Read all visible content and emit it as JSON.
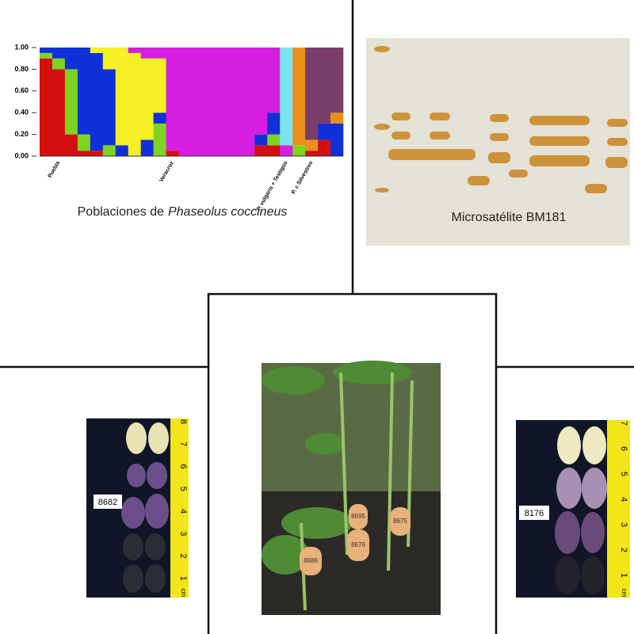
{
  "chart_data": {
    "type": "stacked_bar",
    "categories": [
      null,
      "Puebla",
      null,
      null,
      null,
      null,
      null,
      null,
      null,
      null,
      "Veracruz",
      null,
      null,
      null,
      null,
      null,
      null,
      null,
      null,
      "P. vulgaris + Testigos",
      null,
      "P. c Silvestres",
      null,
      null
    ],
    "xlabel": {
      "prefix": "Poblaciones de",
      "species": "Phaseolus coccineus"
    },
    "ylim": [
      0,
      1
    ],
    "yticks": [
      {
        "value": 0,
        "label": "0.00"
      },
      {
        "value": 0.2,
        "label": "0.20"
      },
      {
        "value": 0.4,
        "label": "0.40"
      },
      {
        "value": 0.6,
        "label": "0.60"
      },
      {
        "value": 0.8,
        "label": "0.80"
      },
      {
        "value": 1,
        "label": "1.00"
      }
    ],
    "series": [
      {
        "color": "#d40f0f",
        "values": [
          0.9,
          0.8,
          0.2,
          0.05,
          0.05,
          0,
          0,
          0,
          0,
          0,
          0.05,
          0,
          0,
          0,
          0,
          0,
          0,
          0.1,
          0.1,
          0,
          0,
          0.05,
          0.15,
          0
        ]
      },
      {
        "color": "#7ed321",
        "values": [
          0.05,
          0.1,
          0.6,
          0.15,
          0,
          0.1,
          0,
          0,
          0,
          0.3,
          0,
          0,
          0,
          0,
          0,
          0,
          0,
          0,
          0.1,
          0,
          0.1,
          0,
          0,
          0
        ]
      },
      {
        "color": "#1030d8",
        "values": [
          0.05,
          0.1,
          0.2,
          0.8,
          0.9,
          0.7,
          0.1,
          0,
          0.15,
          0.1,
          0,
          0,
          0,
          0,
          0,
          0,
          0,
          0.1,
          0.2,
          0,
          0,
          0,
          0.15,
          0.3
        ]
      },
      {
        "color": "#f4f023",
        "values": [
          0,
          0,
          0,
          0,
          0.05,
          0.2,
          0.9,
          0.95,
          0.75,
          0.5,
          0,
          0,
          0,
          0,
          0,
          0,
          0,
          0,
          0,
          0,
          0,
          0,
          0,
          0
        ]
      },
      {
        "color": "#d61ee0",
        "values": [
          0,
          0,
          0,
          0,
          0,
          0,
          0,
          0.05,
          0.1,
          0.1,
          0.95,
          1,
          1,
          1,
          1,
          1,
          1,
          0.8,
          0.6,
          0.1,
          0,
          0,
          0,
          0
        ]
      },
      {
        "color": "#7de3f0",
        "values": [
          0,
          0,
          0,
          0,
          0,
          0,
          0,
          0,
          0,
          0,
          0,
          0,
          0,
          0,
          0,
          0,
          0,
          0,
          0,
          0.9,
          0,
          0,
          0,
          0
        ]
      },
      {
        "color": "#e8901c",
        "values": [
          0,
          0,
          0,
          0,
          0,
          0,
          0,
          0,
          0,
          0,
          0,
          0,
          0,
          0,
          0,
          0,
          0,
          0,
          0,
          0,
          0.9,
          0.1,
          0,
          0.1
        ]
      },
      {
        "color": "#7a3e6a",
        "values": [
          0,
          0,
          0,
          0,
          0,
          0,
          0,
          0,
          0,
          0,
          0,
          0,
          0,
          0,
          0,
          0,
          0,
          0,
          0,
          0,
          0,
          0.85,
          0.7,
          0.6
        ]
      }
    ]
  },
  "gel": {
    "label": "Microsatélite BM181"
  },
  "left_photo": {
    "label": "8682",
    "ruler": [
      "1",
      "2",
      "3",
      "4",
      "5",
      "6",
      "7",
      "8"
    ],
    "unit": "cm"
  },
  "right_photo": {
    "label": "8176",
    "ruler": [
      "1",
      "2",
      "3",
      "4",
      "5",
      "6",
      "7"
    ],
    "unit": "cm"
  },
  "center_photo": {
    "tags": [
      "8676",
      "8675",
      "8695",
      "8686"
    ]
  }
}
